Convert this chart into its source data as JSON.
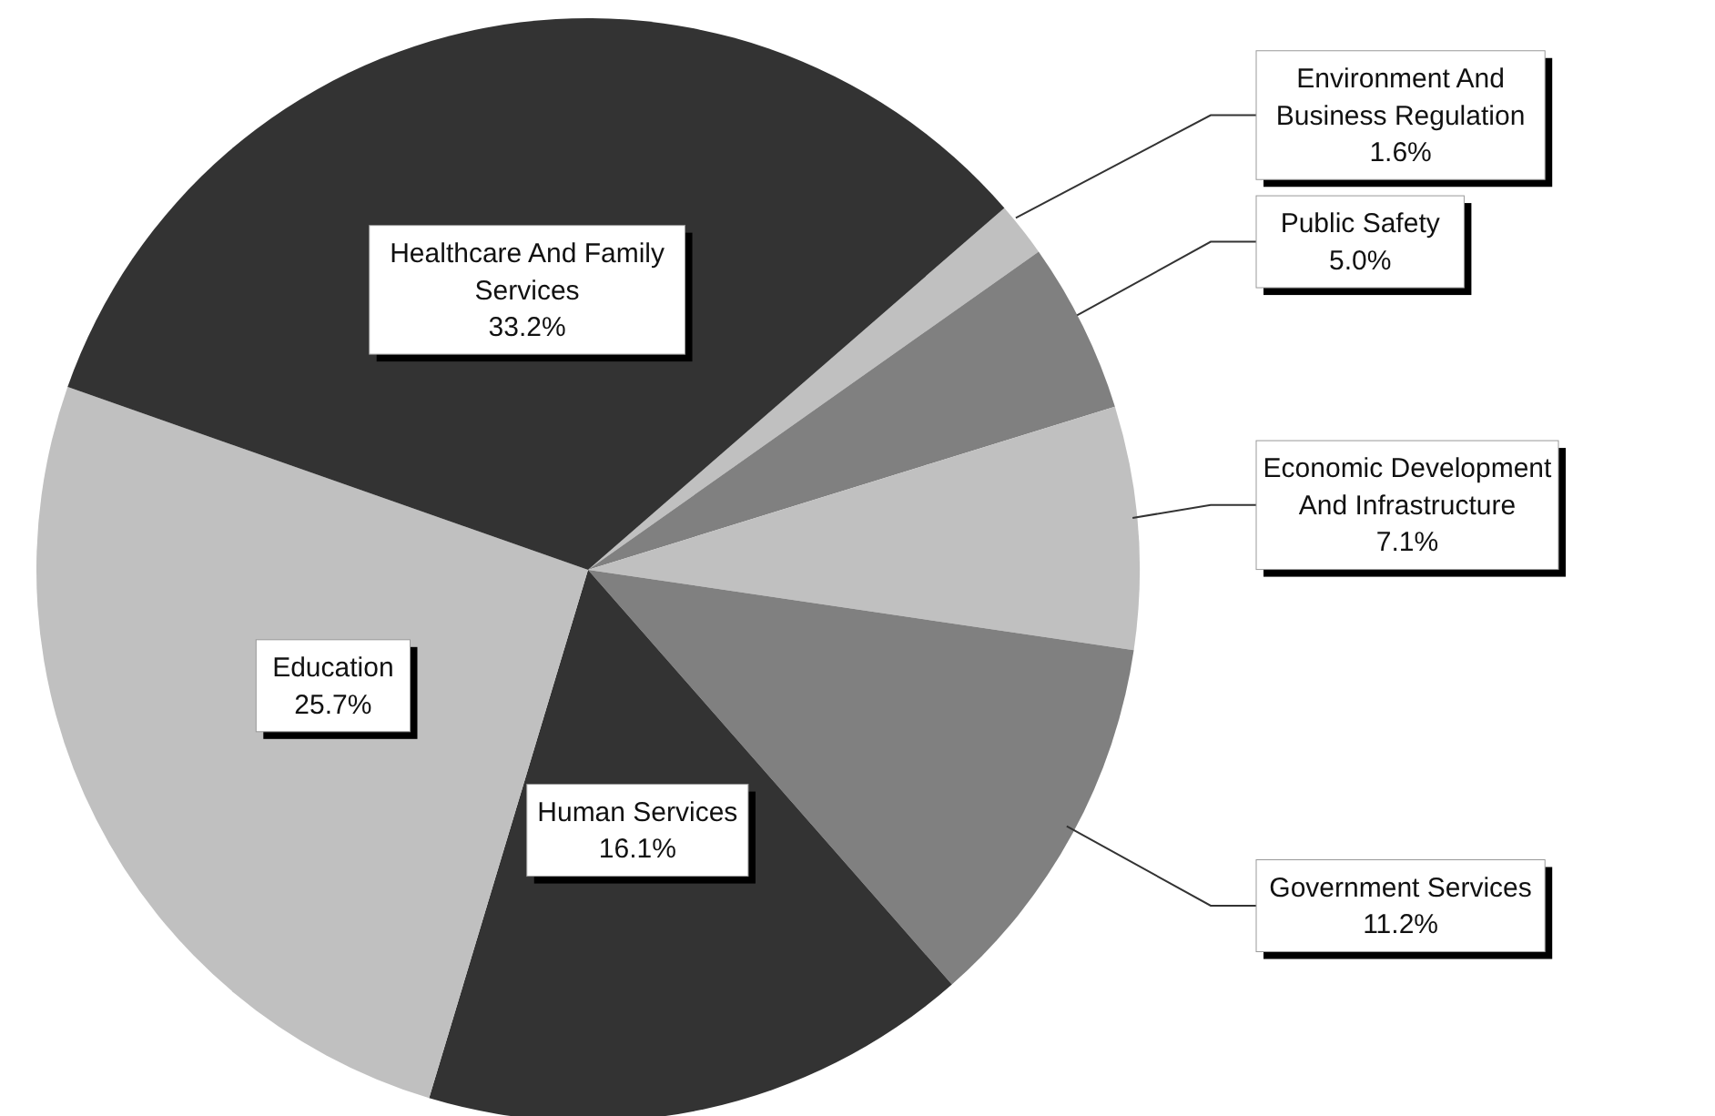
{
  "chart_data": {
    "type": "pie",
    "categories": [
      "Environment And Business Regulation",
      "Public Safety",
      "Economic Development And Infrastructure",
      "Government Services",
      "Human Services",
      "Education",
      "Healthcare And Family Services"
    ],
    "values": [
      1.6,
      5.0,
      7.1,
      11.2,
      16.1,
      25.7,
      33.2
    ],
    "value_labels": [
      "1.6%",
      "5.0%",
      "7.1%",
      "11.2%",
      "16.1%",
      "25.7%",
      "33.2%"
    ],
    "colors": [
      "#c0c0c0",
      "#808080",
      "#c0c0c0",
      "#808080",
      "#333333",
      "#c0c0c0",
      "#333333"
    ],
    "legend": false
  }
}
